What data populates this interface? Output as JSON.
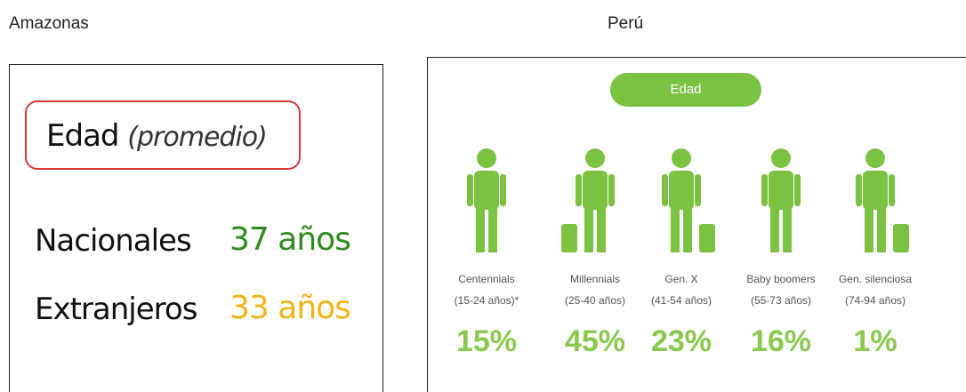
{
  "left": {
    "region": "Amazonas",
    "title": "Edad",
    "title_note": "(promedio)",
    "rows": [
      {
        "label": "Nacionales",
        "value": "37 años"
      },
      {
        "label": "Extranjeros",
        "value": "33 años"
      }
    ]
  },
  "right": {
    "region": "Perú",
    "title": "Edad",
    "groups": [
      {
        "name": "Centennials",
        "range": "(15-24 años)*",
        "share": "15%"
      },
      {
        "name": "Millennials",
        "range": "(25-40 años)",
        "share": "45%"
      },
      {
        "name": "Gen. X",
        "range": "(41-54 años)",
        "share": "23%"
      },
      {
        "name": "Baby boomers",
        "range": "(55-73 años)",
        "share": "16%"
      },
      {
        "name": "Gen. silenciosa",
        "range": "(74-94 años)",
        "share": "1%"
      }
    ]
  }
}
